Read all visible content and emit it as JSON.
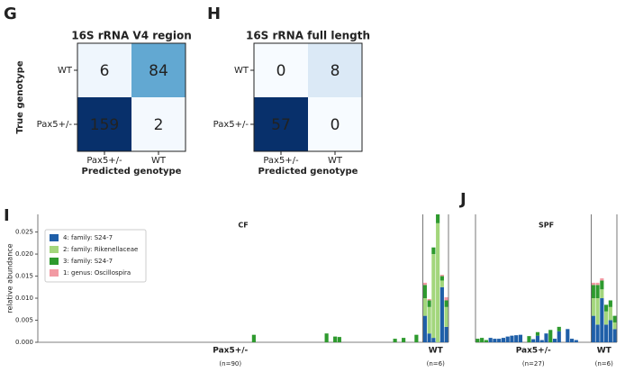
{
  "chart_data": [
    {
      "type": "heatmap",
      "panel": "G",
      "title": "16S rRNA V4 region",
      "ylabel": "True genotype",
      "xlabel": "Predicted genotype",
      "rows": [
        "WT",
        "Pax5+/-"
      ],
      "columns": [
        "Pax5+/-",
        "WT"
      ],
      "values": [
        [
          6,
          84
        ],
        [
          159,
          2
        ]
      ],
      "colormap": "Blues"
    },
    {
      "type": "heatmap",
      "panel": "H",
      "title": "16S rRNA full length",
      "xlabel": "Predicted genotype",
      "rows": [
        "WT",
        "Pax5+/-"
      ],
      "columns": [
        "Pax5+/-",
        "WT"
      ],
      "values": [
        [
          0,
          8
        ],
        [
          57,
          0
        ]
      ],
      "colormap": "Blues"
    },
    {
      "type": "stacked_bar",
      "panel": "I",
      "title": "CF",
      "ylabel": "relative abundance",
      "legend": "upper left",
      "ylim": [
        0,
        0.029
      ],
      "yticks": [
        {
          "value": 0,
          "label": "0.000"
        },
        {
          "value": 0.005,
          "label": "0.005"
        },
        {
          "value": 0.01,
          "label": "0.010"
        },
        {
          "value": 0.015,
          "label": "0.015"
        },
        {
          "value": 0.02,
          "label": "0.020"
        },
        {
          "value": 0.025,
          "label": "0.025"
        }
      ],
      "groups": [
        {
          "name": "Pax5+/-",
          "n": 90,
          "label": "(n=90)"
        },
        {
          "name": "WT",
          "n": 6,
          "label": "(n=6)"
        }
      ],
      "series": [
        {
          "name": "4: family: S24-7",
          "color": "#1f5fa8",
          "values": [
            0,
            0,
            0,
            0,
            0,
            0,
            0,
            0,
            0,
            0,
            0,
            0,
            0,
            0,
            0,
            0,
            0,
            0,
            0,
            0,
            0,
            0,
            0,
            0,
            0,
            0,
            0,
            0,
            0,
            0,
            0,
            0,
            0,
            0,
            0,
            0,
            0,
            0,
            0,
            0,
            0,
            0,
            0,
            0,
            0,
            0,
            0,
            0,
            0,
            0,
            0,
            0,
            0,
            0,
            0,
            0,
            0,
            0,
            0,
            0,
            0,
            0,
            0,
            0,
            0,
            0,
            0,
            0,
            0,
            0,
            0,
            0,
            0,
            0,
            0,
            0,
            0,
            0,
            0,
            0,
            0,
            0,
            0,
            0,
            0,
            0,
            0,
            0,
            0,
            0,
            0.006,
            0.002,
            0.001,
            0,
            0.0125,
            0.0035
          ]
        },
        {
          "name": "2: family: Rikenellaceae",
          "color": "#a3d67c",
          "values": [
            0,
            0,
            0,
            0,
            0,
            0,
            0,
            0,
            0,
            0,
            0,
            0,
            0,
            0,
            0,
            0,
            0,
            0,
            0,
            0,
            0,
            0,
            0,
            0,
            0,
            0,
            0,
            0,
            0,
            0,
            0,
            0,
            0,
            0,
            0,
            0,
            0,
            0,
            0,
            0,
            0,
            0,
            0,
            0,
            0,
            0,
            0,
            0,
            0,
            0,
            0,
            0,
            0,
            0,
            0,
            0,
            0,
            0,
            0,
            0,
            0,
            0,
            0,
            0,
            0,
            0,
            0,
            0,
            0,
            0,
            0,
            0,
            0,
            0,
            0,
            0,
            0,
            0,
            0,
            0,
            0,
            0,
            0,
            0,
            0,
            0,
            0,
            0,
            0,
            0,
            0.004,
            0.006,
            0.019,
            0.027,
            0.0015,
            0.0045
          ]
        },
        {
          "name": "3: family: S24-7",
          "color": "#2e9a2e",
          "values": [
            0,
            0,
            0,
            0,
            0,
            0,
            0,
            0,
            0,
            0,
            0,
            0,
            0,
            0,
            0,
            0,
            0,
            0,
            0,
            0,
            0,
            0,
            0,
            0,
            0,
            0,
            0,
            0,
            0,
            0,
            0,
            0,
            0,
            0,
            0,
            0,
            0,
            0,
            0,
            0,
            0,
            0,
            0,
            0,
            0,
            0,
            0,
            0,
            0,
            0,
            0.0017,
            0,
            0,
            0,
            0,
            0,
            0,
            0,
            0,
            0,
            0,
            0,
            0,
            0,
            0,
            0,
            0,
            0.002,
            0,
            0.0013,
            0.0012,
            0,
            0,
            0,
            0,
            0,
            0,
            0,
            0,
            0,
            0,
            0,
            0,
            0.0008,
            0,
            0.001,
            0,
            0,
            0.0017,
            0,
            0.003,
            0.0015,
            0.0015,
            0.002,
            0.001,
            0.0015
          ]
        },
        {
          "name": "1: genus: Oscillospira",
          "color": "#f29aa3",
          "values": [
            0,
            0,
            0,
            0,
            0,
            0,
            0,
            0,
            0,
            0,
            0,
            0,
            0,
            0,
            0,
            0,
            0,
            0,
            0,
            0,
            0,
            0,
            0,
            0,
            0,
            0,
            0,
            0,
            0,
            0,
            0,
            0,
            0,
            0,
            0,
            0,
            0,
            0,
            0,
            0,
            0,
            0,
            0,
            0,
            0,
            0,
            0,
            0,
            0,
            0,
            0,
            0,
            0,
            0,
            0,
            0,
            0,
            0,
            0,
            0,
            0,
            0,
            0,
            0,
            0,
            0,
            0,
            0,
            0,
            0,
            0,
            0,
            0,
            0,
            0,
            0,
            0,
            0,
            0,
            0,
            0,
            0,
            0,
            0,
            0,
            0,
            0,
            0,
            0,
            0,
            0.0005,
            0.0003,
            0,
            0,
            0.0003,
            0.0007
          ]
        }
      ]
    },
    {
      "type": "stacked_bar",
      "panel": "J",
      "title": "SPF",
      "ylim": [
        0,
        0.029
      ],
      "groups": [
        {
          "name": "Pax5+/-",
          "n": 27,
          "label": "(n=27)"
        },
        {
          "name": "WT",
          "n": 6,
          "label": "(n=6)"
        }
      ],
      "series": [
        {
          "color": "#1f5fa8",
          "values": [
            0,
            0,
            0,
            0.001,
            0.0008,
            0.0008,
            0.001,
            0.0013,
            0.0015,
            0.0016,
            0.0017,
            0,
            0,
            0.0007,
            0.0015,
            0.0005,
            0.002,
            0,
            0.0008,
            0.0025,
            0,
            0.003,
            0.0008,
            0.0005,
            0,
            0,
            0,
            0.006,
            0.004,
            0.01,
            0.004,
            0.005,
            0.003
          ]
        },
        {
          "color": "#a3d67c",
          "values": [
            0,
            0,
            0,
            0,
            0,
            0,
            0,
            0,
            0,
            0,
            0,
            0,
            0,
            0,
            0,
            0,
            0,
            0,
            0,
            0,
            0,
            0,
            0,
            0,
            0,
            0,
            0,
            0.004,
            0.006,
            0.002,
            0.003,
            0.003,
            0.0015
          ]
        },
        {
          "color": "#2e9a2e",
          "values": [
            0.0008,
            0.001,
            0.0005,
            0,
            0,
            0,
            0,
            0,
            0,
            0,
            0,
            0,
            0.0014,
            0,
            0.0008,
            0,
            0,
            0.0028,
            0,
            0.001,
            0,
            0,
            0,
            0,
            0,
            0,
            0,
            0.003,
            0.003,
            0.002,
            0.0015,
            0.0015,
            0.0015
          ]
        },
        {
          "color": "#f29aa3",
          "values": [
            0,
            0,
            0,
            0,
            0,
            0,
            0,
            0,
            0,
            0,
            0,
            0,
            0,
            0,
            0,
            0,
            0,
            0,
            0,
            0,
            0,
            0,
            0,
            0,
            0,
            0,
            0,
            0.0005,
            0.0005,
            0.0005,
            0,
            0,
            0
          ]
        }
      ]
    }
  ]
}
